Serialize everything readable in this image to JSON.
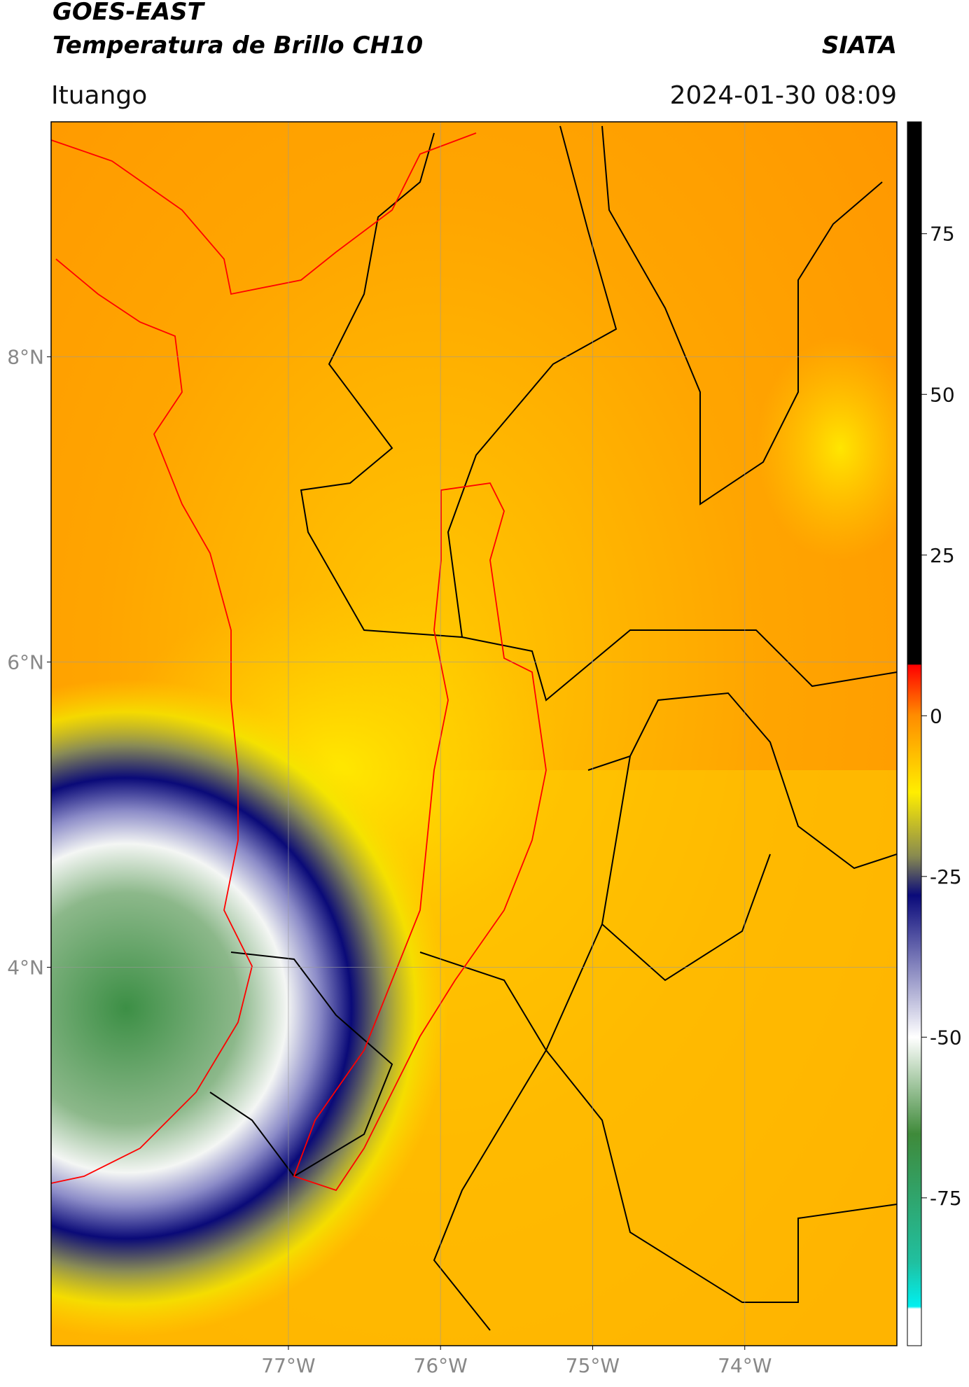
{
  "header": {
    "title": "GOES-EAST",
    "subtitle": "Temperatura de Brillo CH10",
    "source": "SIATA",
    "location": "Ituango",
    "datetime": "2024-01-30 08:09"
  },
  "map": {
    "lon_range": [
      -78.56,
      -73.0
    ],
    "lat_range": [
      1.52,
      9.54
    ],
    "lat_ticks": [
      {
        "value": 8,
        "label": "8°N"
      },
      {
        "value": 6,
        "label": "6°N"
      },
      {
        "value": 4,
        "label": "4°N"
      }
    ],
    "lon_ticks": [
      {
        "value": -77,
        "label": "77°W"
      },
      {
        "value": -76,
        "label": "76°W"
      },
      {
        "value": -75,
        "label": "75°W"
      },
      {
        "value": -74,
        "label": "74°W"
      }
    ],
    "grid": true
  },
  "colorbar": {
    "range": [
      -98,
      92.4
    ],
    "ticks": [
      75,
      50,
      25,
      0,
      -25,
      -50,
      -75
    ]
  }
}
